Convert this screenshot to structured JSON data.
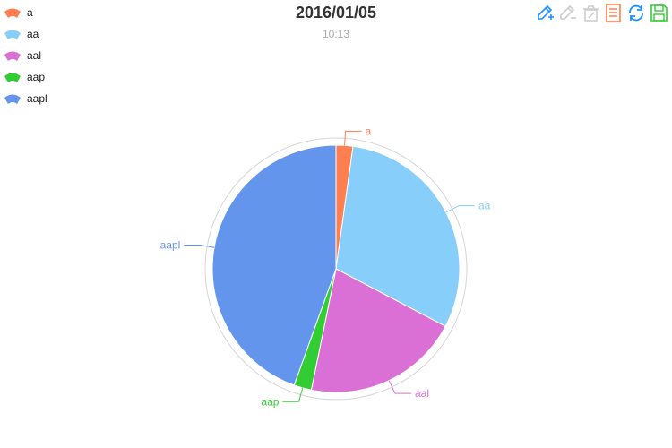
{
  "title": "2016/01/05",
  "subtitle": "10:13",
  "colors": {
    "a": "#ff7f50",
    "aa": "#87cefa",
    "aal": "#da70d6",
    "aap": "#32cd32",
    "aapl": "#6495ed"
  },
  "legend": [
    {
      "label": "a",
      "color": "#ff7f50"
    },
    {
      "label": "aa",
      "color": "#87cefa"
    },
    {
      "label": "aal",
      "color": "#da70d6"
    },
    {
      "label": "aap",
      "color": "#32cd32"
    },
    {
      "label": "aapl",
      "color": "#6495ed"
    }
  ],
  "toolbox": [
    {
      "name": "data-zoom-icon",
      "color": "#1e90ff"
    },
    {
      "name": "data-zoom-reset-icon",
      "color": "#cccccc"
    },
    {
      "name": "clear-icon",
      "color": "#cccccc"
    },
    {
      "name": "data-view-icon",
      "color": "#ff7f50"
    },
    {
      "name": "restore-icon",
      "color": "#1e90ff"
    },
    {
      "name": "save-image-icon",
      "color": "#32cd32"
    }
  ],
  "chart_data": {
    "type": "pie",
    "title": "2016/01/05",
    "subtitle": "10:13",
    "legend_position": "top-left",
    "start_angle_deg": 90,
    "clockwise": true,
    "slices": [
      {
        "name": "a",
        "value": 2.2,
        "color": "#ff7f50"
      },
      {
        "name": "aa",
        "value": 30.5,
        "color": "#87cefa"
      },
      {
        "name": "aal",
        "value": 20.5,
        "color": "#da70d6"
      },
      {
        "name": "aap",
        "value": 2.3,
        "color": "#32cd32"
      },
      {
        "name": "aapl",
        "value": 44.5,
        "color": "#6495ed"
      }
    ]
  }
}
